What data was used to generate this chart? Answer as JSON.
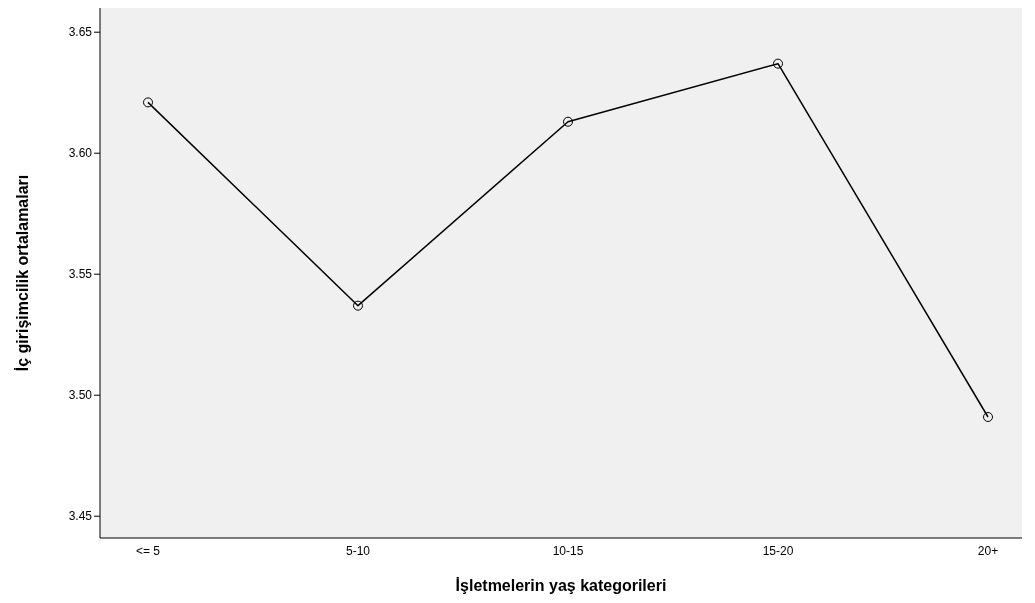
{
  "chart_data": {
    "type": "line",
    "xlabel": "İşletmelerin yaş kategorileri",
    "ylabel": "İç girişimcilik ortalamaları",
    "categories": [
      "<= 5",
      "5-10",
      "10-15",
      "15-20",
      "20+"
    ],
    "series": [
      {
        "color": "#000000",
        "values": [
          3.621,
          3.537,
          3.613,
          3.637,
          3.491
        ]
      }
    ],
    "ylim": [
      3.441,
      3.66
    ],
    "yticks": [
      {
        "value": 3.45,
        "label": "3.45"
      },
      {
        "value": 3.5,
        "label": "3.50"
      },
      {
        "value": 3.55,
        "label": "3.55"
      },
      {
        "value": 3.6,
        "label": "3.60"
      },
      {
        "value": 3.65,
        "label": "3.65"
      }
    ],
    "marker": "circle",
    "line_style": "solid",
    "grid": false,
    "legend": false
  }
}
